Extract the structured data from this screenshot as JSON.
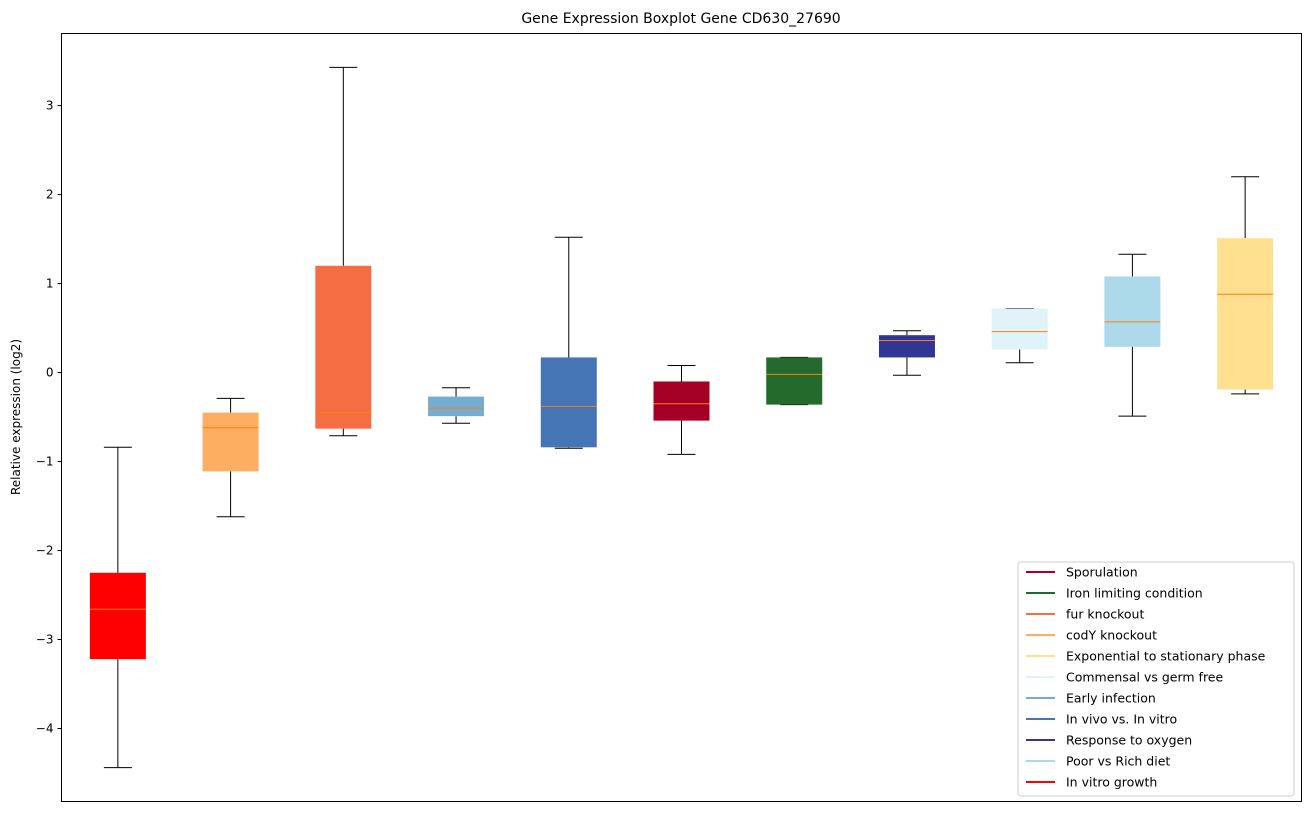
{
  "chart_data": {
    "type": "boxplot",
    "title": "Gene Expression Boxplot Gene CD630_27690",
    "xlabel": "",
    "ylabel": "Relative expression (log2)",
    "ylim": [
      -4.82,
      3.81
    ],
    "yticks": [
      -4,
      -3,
      -2,
      -1,
      0,
      1,
      2,
      3
    ],
    "ytick_labels": [
      "−4",
      "−3",
      "−2",
      "−1",
      "0",
      "1",
      "2",
      "3"
    ],
    "grid": false,
    "legend_position": "lower-right",
    "median_color": "#ff7f0e",
    "boxes": [
      {
        "name": "In vitro growth",
        "color": "#ff0000",
        "whislo": -4.44,
        "q1": -3.22,
        "med": -2.66,
        "q3": -2.25,
        "whishi": -0.84
      },
      {
        "name": "codY knockout",
        "color": "#fdae61",
        "whislo": -1.62,
        "q1": -1.11,
        "med": -0.62,
        "q3": -0.45,
        "whishi": -0.29
      },
      {
        "name": "fur knockout",
        "color": "#f46d43",
        "whislo": -0.71,
        "q1": -0.63,
        "med": -0.45,
        "q3": 1.2,
        "whishi": 3.43
      },
      {
        "name": "Early infection",
        "color": "#74add1",
        "whislo": -0.57,
        "q1": -0.49,
        "med": -0.4,
        "q3": -0.27,
        "whishi": -0.17
      },
      {
        "name": "In vivo vs. In vitro",
        "color": "#4575b4",
        "whislo": -0.85,
        "q1": -0.84,
        "med": -0.38,
        "q3": 0.17,
        "whishi": 1.52
      },
      {
        "name": "Sporulation",
        "color": "#a50026",
        "whislo": -0.92,
        "q1": -0.54,
        "med": -0.35,
        "q3": -0.1,
        "whishi": 0.08
      },
      {
        "name": "Iron limiting condition",
        "color": "#236a2c",
        "whislo": -0.36,
        "q1": -0.36,
        "med": -0.02,
        "q3": 0.17,
        "whishi": 0.17
      },
      {
        "name": "Response to oxygen",
        "color": "#313695",
        "whislo": -0.03,
        "q1": 0.17,
        "med": 0.36,
        "q3": 0.42,
        "whishi": 0.47
      },
      {
        "name": "Commensal vs germ free",
        "color": "#e0f3f8",
        "whislo": 0.11,
        "q1": 0.26,
        "med": 0.46,
        "q3": 0.72,
        "whishi": 0.72
      },
      {
        "name": "Poor vs Rich diet",
        "color": "#abd9e9",
        "whislo": -0.49,
        "q1": 0.29,
        "med": 0.57,
        "q3": 1.08,
        "whishi": 1.33
      },
      {
        "name": "Exponential to stationary phase",
        "color": "#fee090",
        "whislo": -0.24,
        "q1": -0.19,
        "med": 0.88,
        "q3": 1.51,
        "whishi": 2.2
      }
    ],
    "legend": [
      {
        "label": "Sporulation",
        "color": "#a50026"
      },
      {
        "label": "Iron limiting condition",
        "color": "#236a2c"
      },
      {
        "label": "fur knockout",
        "color": "#f46d43"
      },
      {
        "label": "codY knockout",
        "color": "#fdae61"
      },
      {
        "label": "Exponential to stationary phase",
        "color": "#fee090"
      },
      {
        "label": "Commensal vs germ free",
        "color": "#e0f3f8"
      },
      {
        "label": "Early infection",
        "color": "#74add1"
      },
      {
        "label": "In vivo vs. In vitro",
        "color": "#4575b4"
      },
      {
        "label": "Response to oxygen",
        "color": "#313695"
      },
      {
        "label": "Poor vs Rich diet",
        "color": "#abd9e9"
      },
      {
        "label": "In vitro growth",
        "color": "#ff0000"
      }
    ]
  }
}
